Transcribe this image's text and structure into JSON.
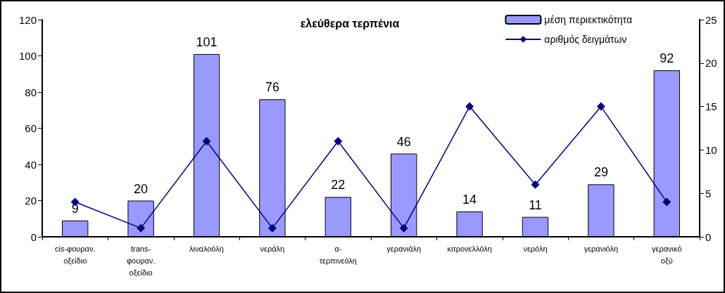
{
  "chart_data": {
    "type": "bar",
    "title": "ελεύθερα τερπένια",
    "categories": [
      "cis-φουραν. οξείδιο",
      "trans- φουραν. οξείδιο",
      "λιναλοόλη",
      "νεράλη",
      "α- τερπινεόλη",
      "γερανιάλη",
      "κιτρονελλόλη",
      "νερόλη",
      "γερανιόλη",
      "γερανικό οξύ"
    ],
    "series": [
      {
        "name": "μέση περιεκτικότητα",
        "color": "#9999ff",
        "values": [
          9,
          20,
          101,
          76,
          22,
          46,
          14,
          11,
          29,
          92
        ],
        "value_labels": [
          "9",
          "20",
          "101",
          "76",
          "22",
          "46",
          "14",
          "11",
          "29",
          "92"
        ]
      },
      {
        "name": "αριθμός δειγμάτων",
        "type": "line",
        "axis": "y2",
        "color": "#000080",
        "marker": "diamond",
        "values": [
          4,
          1,
          11,
          1,
          11,
          1,
          15,
          6,
          15,
          4
        ]
      }
    ],
    "ylim": [
      0,
      120
    ],
    "yticks": [
      0,
      20,
      40,
      60,
      80,
      100,
      120
    ],
    "y2lim": [
      0,
      25
    ],
    "y2ticks": [
      0,
      5,
      10,
      15,
      20,
      25
    ],
    "grid": false,
    "legend": "top right"
  }
}
